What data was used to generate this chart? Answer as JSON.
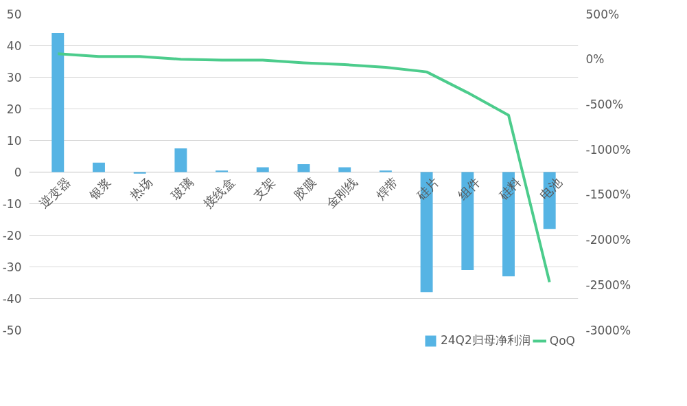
{
  "chart_data": {
    "type": "bar",
    "categories": [
      "逆变器",
      "银浆",
      "热场",
      "玻璃",
      "接线盒",
      "支架",
      "胶膜",
      "金刚线",
      "焊带",
      "硅片",
      "组件",
      "硅料",
      "电池"
    ],
    "series": [
      {
        "name": "24Q2归母净利润",
        "color": "#56b4e4",
        "values": [
          44,
          3,
          -0.5,
          7.5,
          0.5,
          1.5,
          2.5,
          1.5,
          0.5,
          -38,
          -31,
          -33,
          -18
        ]
      },
      {
        "name": "QoQ",
        "type": "line",
        "axis": "y2",
        "color": "#4ccc8c",
        "values": [
          60,
          30,
          30,
          0,
          -10,
          -10,
          -40,
          -60,
          -90,
          -140,
          -370,
          -620,
          -2470
        ]
      }
    ],
    "ylim": [
      -50,
      50
    ],
    "yticks": [
      -50,
      -40,
      -30,
      -20,
      -10,
      0,
      10,
      20,
      30,
      40,
      50
    ],
    "y2lim": [
      -3000,
      500
    ],
    "y2ticks": [
      {
        "value": -3000,
        "label": "-3000%"
      },
      {
        "value": -2500,
        "label": "-2500%"
      },
      {
        "value": -2000,
        "label": "-2000%"
      },
      {
        "value": -1500,
        "label": "-1500%"
      },
      {
        "value": -1000,
        "label": "-1000%"
      },
      {
        "value": -500,
        "label": "-500%"
      },
      {
        "value": 0,
        "label": "0%"
      },
      {
        "value": 500,
        "label": "500%"
      }
    ],
    "grid": "y",
    "legend": "bottom",
    "line_style": "solid",
    "marker": "none"
  }
}
